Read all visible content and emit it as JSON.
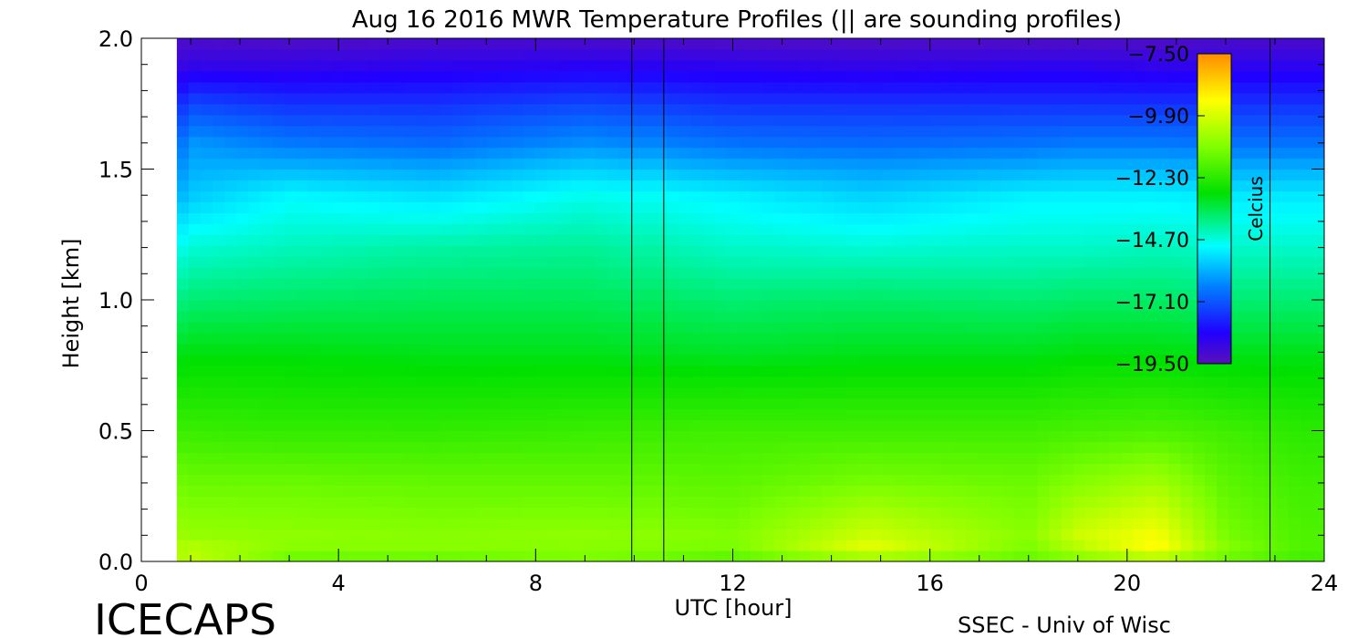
{
  "chart_data": {
    "type": "heatmap",
    "title": "Aug 16 2016 MWR Temperature Profiles (|| are sounding profiles)",
    "xlabel": "UTC [hour]",
    "ylabel": "Height [km]",
    "xlim": [
      0,
      24
    ],
    "ylim": [
      0,
      2.0
    ],
    "x_ticks": [
      0,
      4,
      8,
      12,
      16,
      20,
      24
    ],
    "x_tick_labels": [
      "0",
      "4",
      "8",
      "12",
      "16",
      "20",
      "24"
    ],
    "y_ticks": [
      0.0,
      0.5,
      1.0,
      1.5,
      2.0
    ],
    "y_tick_labels": [
      "0.0",
      "0.5",
      "1.0",
      "1.5",
      "2.0"
    ],
    "colorbar": {
      "label": "Celcius",
      "range": [
        -19.5,
        -7.5
      ],
      "ticks": [
        -7.5,
        -9.9,
        -12.3,
        -14.7,
        -17.1,
        -19.5
      ],
      "tick_labels": [
        "−7.50",
        "−9.90",
        "−12.30",
        "−14.70",
        "−17.10",
        "−19.50"
      ],
      "placement": "top-right, inside plot"
    },
    "sounding_markers_utc": [
      9.95,
      22.9
    ],
    "data_gap_utc": [
      9.95,
      10.6
    ],
    "estimated_profile_temperatures_c": {
      "heights_km": [
        0.0,
        0.05,
        0.1,
        0.3,
        0.5,
        0.8,
        1.0,
        1.2,
        1.4,
        1.5,
        1.6,
        1.75,
        1.9,
        2.0
      ],
      "x_hours": [
        0.5,
        1.0,
        3,
        6,
        9,
        12,
        14.8,
        18,
        19,
        20.6,
        22,
        23.5
      ],
      "values": [
        [
          -11.0,
          -10.5,
          -10.6,
          -11.2,
          -12.0,
          -13.2,
          -14.1,
          -15.0,
          -16.2,
          -16.8,
          -17.4,
          -18.2,
          -19.0,
          -19.3
        ],
        [
          -10.2,
          -10.3,
          -10.8,
          -11.4,
          -12.1,
          -13.0,
          -13.8,
          -14.6,
          -15.6,
          -15.9,
          -16.2,
          -17.3,
          -18.7,
          -19.2
        ],
        [
          -11.5,
          -11.0,
          -10.9,
          -11.4,
          -12.2,
          -13.0,
          -13.7,
          -14.4,
          -15.0,
          -15.8,
          -16.6,
          -17.6,
          -18.7,
          -19.3
        ],
        [
          -11.6,
          -11.0,
          -11.0,
          -11.5,
          -12.2,
          -13.1,
          -13.6,
          -14.2,
          -15.3,
          -16.0,
          -16.8,
          -17.6,
          -18.6,
          -19.2
        ],
        [
          -11.2,
          -11.0,
          -10.9,
          -11.5,
          -12.1,
          -13.1,
          -13.6,
          -14.1,
          -14.8,
          -15.5,
          -16.3,
          -17.3,
          -18.5,
          -19.2
        ],
        [
          -11.8,
          -11.2,
          -11.1,
          -11.6,
          -12.0,
          -13.2,
          -13.8,
          -14.5,
          -15.1,
          -15.9,
          -16.7,
          -17.6,
          -18.6,
          -19.3
        ],
        [
          -11.0,
          -9.6,
          -10.0,
          -11.2,
          -12.0,
          -13.1,
          -13.7,
          -14.6,
          -15.5,
          -16.1,
          -16.8,
          -17.6,
          -18.7,
          -19.3
        ],
        [
          -11.6,
          -11.2,
          -11.0,
          -11.4,
          -12.0,
          -13.1,
          -13.8,
          -14.5,
          -15.1,
          -15.9,
          -16.7,
          -17.6,
          -18.6,
          -19.3
        ],
        [
          -11.2,
          -10.4,
          -10.0,
          -11.0,
          -11.9,
          -13.0,
          -13.7,
          -14.5,
          -15.1,
          -15.8,
          -16.6,
          -17.6,
          -18.6,
          -19.3
        ],
        [
          -10.8,
          -9.2,
          -9.4,
          -10.6,
          -11.8,
          -13.0,
          -13.7,
          -14.4,
          -15.1,
          -15.8,
          -16.6,
          -17.6,
          -18.7,
          -19.3
        ],
        [
          -11.5,
          -11.0,
          -11.2,
          -11.6,
          -12.0,
          -13.1,
          -13.8,
          -14.5,
          -15.2,
          -15.9,
          -16.7,
          -17.6,
          -18.6,
          -19.2
        ],
        [
          -12.0,
          -11.8,
          -11.8,
          -12.0,
          -12.3,
          -13.1,
          -13.8,
          -14.5,
          -15.2,
          -15.9,
          -16.7,
          -17.6,
          -18.6,
          -19.2
        ]
      ]
    }
  },
  "footer": {
    "left": "ICECAPS",
    "right": "SSEC - Univ of Wisc"
  },
  "colors": {
    "low": "#6a0dad",
    "mid": "#00e000",
    "high": "#ff8c00",
    "axis": "#000000"
  }
}
